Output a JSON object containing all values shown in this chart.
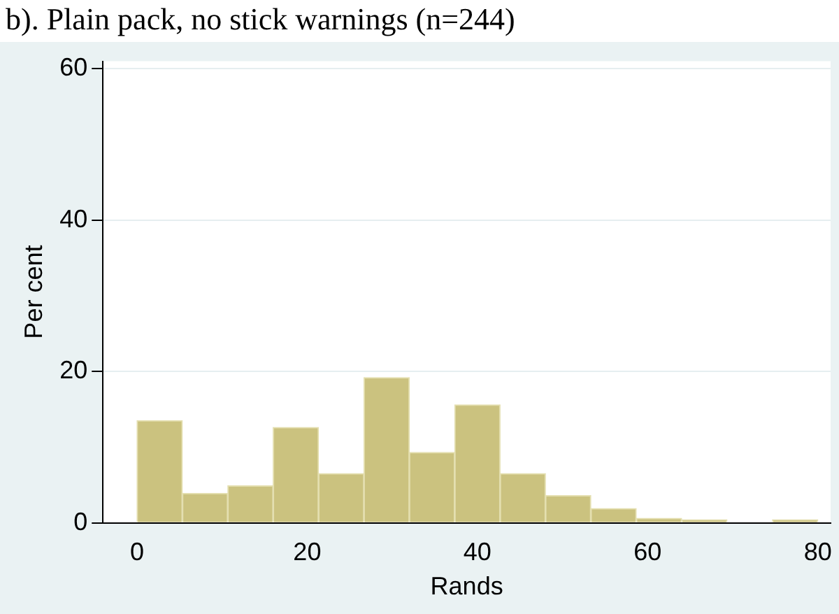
{
  "chart_data": {
    "type": "histogram",
    "title": "b). Plain pack, no stick warnings (n=244)",
    "xlabel": "Rands",
    "ylabel": "Per cent",
    "bins": [
      0,
      5.33,
      10.67,
      16,
      21.33,
      26.67,
      32,
      37.33,
      42.67,
      48,
      53.33,
      58.67,
      64,
      69.33,
      74.67,
      80
    ],
    "values": [
      13.5,
      3.9,
      4.9,
      12.6,
      6.5,
      19.2,
      9.3,
      15.6,
      6.5,
      3.6,
      1.9,
      0.6,
      0.4,
      0,
      0.4
    ],
    "color": "#cbc27f",
    "xlim": [
      -4,
      81.5
    ],
    "xticks": [
      0,
      20,
      40,
      60,
      80
    ],
    "ylim": [
      0,
      61
    ],
    "yticks": [
      0,
      20,
      40,
      60
    ],
    "grid": "y",
    "legend": false
  }
}
